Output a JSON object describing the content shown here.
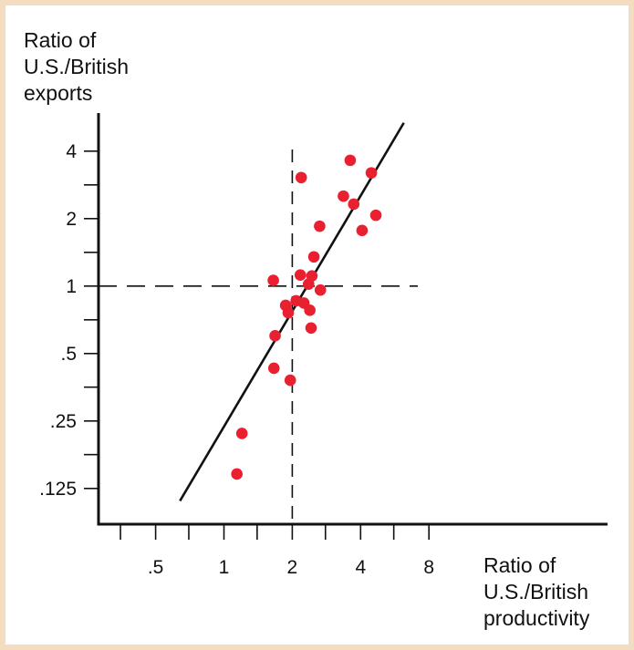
{
  "colors": {
    "frame": "#f3dcbf",
    "point": "#e8202f",
    "ink": "#111111"
  },
  "chart_data": {
    "type": "scatter",
    "title": "",
    "ylabel_lines": [
      "Ratio of",
      "U.S./British",
      "exports"
    ],
    "xlabel_lines": [
      "Ratio of",
      "U.S./British",
      "productivity"
    ],
    "x_scale": "log2",
    "y_scale": "log2",
    "xlim": [
      0.3,
      32
    ],
    "ylim": [
      0.1,
      5.6
    ],
    "x_ticks": [
      {
        "value": 0.35
      },
      {
        "value": 0.5,
        "label": ".5"
      },
      {
        "value": 0.7
      },
      {
        "value": 1,
        "label": "1"
      },
      {
        "value": 1.4
      },
      {
        "value": 2,
        "label": "2"
      },
      {
        "value": 2.8
      },
      {
        "value": 4,
        "label": "4"
      },
      {
        "value": 5.6
      },
      {
        "value": 8,
        "label": "8"
      }
    ],
    "y_ticks": [
      {
        "value": 0.125,
        "label": ".125"
      },
      {
        "value": 0.177
      },
      {
        "value": 0.25,
        "label": ".25"
      },
      {
        "value": 0.354
      },
      {
        "value": 0.5,
        "label": ".5"
      },
      {
        "value": 0.707
      },
      {
        "value": 1,
        "label": "1"
      },
      {
        "value": 1.414
      },
      {
        "value": 2,
        "label": "2"
      },
      {
        "value": 2.828
      },
      {
        "value": 4,
        "label": "4"
      }
    ],
    "reference_lines": {
      "x": 2,
      "y": 1,
      "style": "dashed"
    },
    "regression_line": [
      [
        0.64,
        0.11
      ],
      [
        6.2,
        5.35
      ]
    ],
    "points": [
      {
        "x": 1.14,
        "y": 0.145
      },
      {
        "x": 1.2,
        "y": 0.22
      },
      {
        "x": 1.65,
        "y": 1.06
      },
      {
        "x": 1.68,
        "y": 0.6
      },
      {
        "x": 1.66,
        "y": 0.43
      },
      {
        "x": 1.87,
        "y": 0.82
      },
      {
        "x": 1.92,
        "y": 0.76
      },
      {
        "x": 1.96,
        "y": 0.38
      },
      {
        "x": 2.08,
        "y": 0.86
      },
      {
        "x": 2.17,
        "y": 1.12
      },
      {
        "x": 2.25,
        "y": 0.84
      },
      {
        "x": 2.36,
        "y": 1.02
      },
      {
        "x": 2.39,
        "y": 0.78
      },
      {
        "x": 2.44,
        "y": 1.11
      },
      {
        "x": 2.49,
        "y": 1.35
      },
      {
        "x": 2.42,
        "y": 0.65
      },
      {
        "x": 2.66,
        "y": 0.96
      },
      {
        "x": 2.64,
        "y": 1.85
      },
      {
        "x": 2.19,
        "y": 3.05
      },
      {
        "x": 3.36,
        "y": 2.52
      },
      {
        "x": 3.6,
        "y": 3.64
      },
      {
        "x": 3.73,
        "y": 2.32
      },
      {
        "x": 4.06,
        "y": 1.77
      },
      {
        "x": 4.46,
        "y": 3.2
      },
      {
        "x": 4.67,
        "y": 2.07
      }
    ]
  }
}
